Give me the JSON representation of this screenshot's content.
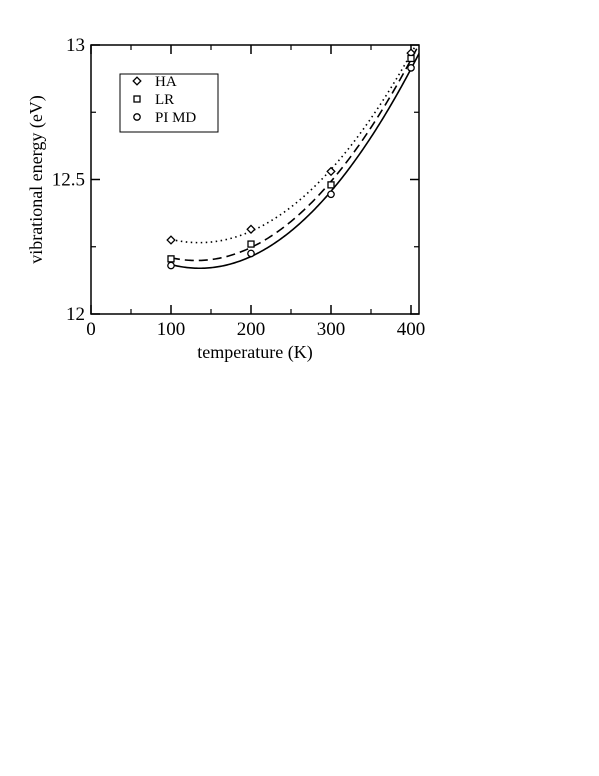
{
  "chart_data": {
    "type": "scatter",
    "title": "",
    "xlabel": "temperature (K)",
    "ylabel": "vibrational energy (eV)",
    "xlim": [
      0,
      410
    ],
    "ylim": [
      12,
      13
    ],
    "xticks": [
      0,
      100,
      200,
      300,
      400
    ],
    "xtick_labels": [
      "0",
      "100",
      "200",
      "300",
      "400"
    ],
    "yticks": [
      12,
      12.5,
      13
    ],
    "ytick_labels": [
      "12",
      "12.5",
      "13"
    ],
    "grid": false,
    "legend_position": "top-left",
    "series": [
      {
        "name": "HA",
        "marker": "diamond",
        "line_style": "dotted",
        "x": [
          100,
          200,
          300,
          400
        ],
        "y": [
          12.275,
          12.315,
          12.53,
          12.97
        ]
      },
      {
        "name": "LR",
        "marker": "square",
        "line_style": "dashed",
        "x": [
          100,
          200,
          300,
          400
        ],
        "y": [
          12.205,
          12.26,
          12.48,
          12.95
        ]
      },
      {
        "name": "PI MD",
        "marker": "circle",
        "line_style": "solid",
        "x": [
          100,
          200,
          300,
          400
        ],
        "y": [
          12.18,
          12.225,
          12.445,
          12.915
        ]
      }
    ]
  }
}
